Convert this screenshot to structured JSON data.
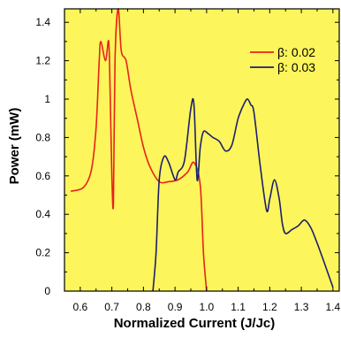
{
  "chart_data": {
    "type": "line",
    "title": "",
    "xlabel": "Normalized Current (J/Jc)",
    "ylabel": "Power (mW)",
    "xlim": [
      0.55,
      1.42
    ],
    "ylim": [
      0,
      1.47
    ],
    "xticks": [
      0.6,
      0.7,
      0.8,
      0.9,
      1.0,
      1.1,
      1.2,
      1.3,
      1.4
    ],
    "xtick_labels": [
      "0.6",
      "0.7",
      "0.8",
      "0.9",
      "1.0",
      "1.1",
      "1.2",
      "1.3",
      "1.4"
    ],
    "yticks": [
      0,
      0.2,
      0.4,
      0.6,
      0.8,
      1.0,
      1.2,
      1.4
    ],
    "ytick_labels": [
      "0",
      "0.2",
      "0.4",
      "0.6",
      "0.8",
      "1",
      "1.2",
      "1.4"
    ],
    "grid": false,
    "legend_position": "top-right",
    "background_color": "#fcf55b",
    "series": [
      {
        "name": "β: 0.02",
        "color": "#e8231a",
        "x": [
          0.57,
          0.61,
          0.635,
          0.65,
          0.66,
          0.665,
          0.68,
          0.69,
          0.695,
          0.7,
          0.705,
          0.71,
          0.72,
          0.73,
          0.745,
          0.76,
          0.78,
          0.8,
          0.82,
          0.85,
          0.88,
          0.91,
          0.94,
          0.96,
          0.98,
          0.99,
          1.0
        ],
        "y": [
          0.52,
          0.54,
          0.63,
          0.85,
          1.2,
          1.3,
          1.2,
          1.3,
          1.0,
          0.6,
          0.46,
          1.2,
          1.47,
          1.25,
          1.2,
          1.05,
          0.9,
          0.75,
          0.65,
          0.57,
          0.57,
          0.58,
          0.62,
          0.67,
          0.55,
          0.2,
          0.0
        ]
      },
      {
        "name": "β: 0.03",
        "color": "#1c1f6e",
        "x": [
          0.83,
          0.84,
          0.85,
          0.865,
          0.88,
          0.9,
          0.91,
          0.93,
          0.95,
          0.96,
          0.97,
          0.98,
          0.99,
          1.005,
          1.02,
          1.04,
          1.06,
          1.08,
          1.1,
          1.12,
          1.13,
          1.14,
          1.15,
          1.17,
          1.19,
          1.2,
          1.215,
          1.23,
          1.24,
          1.25,
          1.27,
          1.29,
          1.31,
          1.33,
          1.35,
          1.37,
          1.4
        ],
        "y": [
          0.0,
          0.2,
          0.58,
          0.7,
          0.67,
          0.58,
          0.62,
          0.68,
          0.95,
          0.97,
          0.58,
          0.75,
          0.83,
          0.82,
          0.8,
          0.78,
          0.73,
          0.76,
          0.9,
          0.98,
          1.0,
          0.97,
          0.93,
          0.65,
          0.42,
          0.48,
          0.58,
          0.48,
          0.35,
          0.3,
          0.32,
          0.34,
          0.37,
          0.33,
          0.25,
          0.16,
          0.02
        ]
      }
    ]
  }
}
